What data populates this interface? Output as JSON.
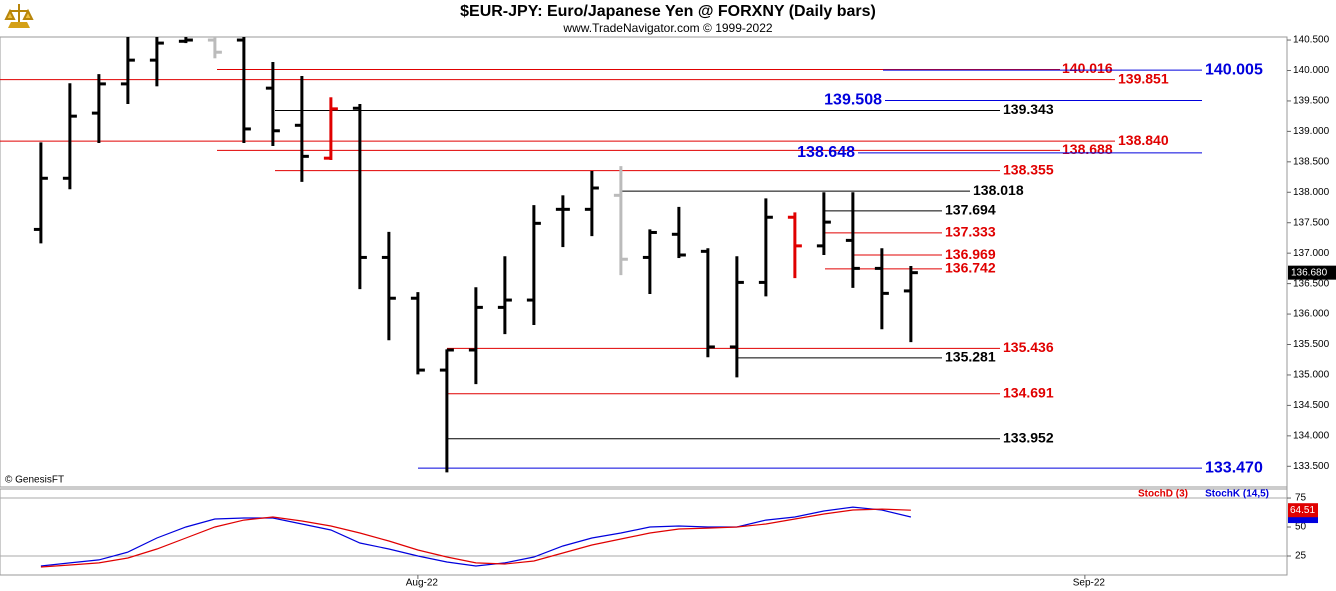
{
  "chart_data": [
    {
      "type": "ohlc",
      "title": "$EUR-JPY:  Euro/Japanese Yen @ FORXNY  (Daily bars)",
      "subtitle": "www.TradeNavigator.com © 1999-2022",
      "source": "© GenesisFT",
      "categories": [
        null,
        null,
        null,
        null,
        null,
        null,
        null,
        null,
        null,
        null,
        null,
        null,
        null,
        null,
        null,
        null,
        null,
        null,
        null,
        null,
        null,
        null,
        null,
        null,
        null,
        null,
        null,
        null,
        null,
        null,
        null
      ],
      "xlim": [
        -1.41,
        42.97
      ],
      "open": [
        137.39,
        138.23,
        139.3,
        139.78,
        140.17,
        140.48,
        140.5,
        140.5,
        139.71,
        139.1,
        138.56,
        139.38,
        136.93,
        136.26,
        135.08,
        135.41,
        136.11,
        136.23,
        137.72,
        137.72,
        137.95,
        136.93,
        137.31,
        137.03,
        135.46,
        136.52,
        137.59,
        137.12,
        137.21,
        136.75,
        136.38
      ],
      "high": [
        138.82,
        139.79,
        139.94,
        140.6,
        140.6,
        140.6,
        140.6,
        140.6,
        140.14,
        139.91,
        139.56,
        139.45,
        137.35,
        136.36,
        135.42,
        136.44,
        136.95,
        137.79,
        137.95,
        138.35,
        138.43,
        137.39,
        137.76,
        137.08,
        136.95,
        137.9,
        137.67,
        138.0,
        138.0,
        137.08,
        136.79
      ],
      "low": [
        137.16,
        138.05,
        138.81,
        139.45,
        139.74,
        140.45,
        140.2,
        138.81,
        138.76,
        138.17,
        138.53,
        136.41,
        135.57,
        135.01,
        133.4,
        134.85,
        135.67,
        135.82,
        137.1,
        137.28,
        136.64,
        136.33,
        136.92,
        135.29,
        134.96,
        136.29,
        136.59,
        136.97,
        136.43,
        135.75,
        135.54
      ],
      "close": [
        138.23,
        139.25,
        139.78,
        140.17,
        140.45,
        140.5,
        140.3,
        139.04,
        139.01,
        138.59,
        139.37,
        136.93,
        136.26,
        135.08,
        135.41,
        136.11,
        136.23,
        137.49,
        137.72,
        138.07,
        136.9,
        137.34,
        136.97,
        135.46,
        136.52,
        137.59,
        137.12,
        137.51,
        136.75,
        136.34,
        136.68
      ],
      "colors": [
        "#000",
        "#000",
        "#000",
        "#000",
        "#000",
        "#000",
        "#bbbbbb",
        "#000",
        "#000",
        "#000",
        "#e00000",
        "#000",
        "#000",
        "#000",
        "#000",
        "#000",
        "#000",
        "#000",
        "#000",
        "#000",
        "#bbbbbb",
        "#000",
        "#000",
        "#000",
        "#000",
        "#000",
        "#e00000",
        "#000",
        "#000",
        "#000",
        "#000"
      ],
      "last_price": {
        "value": 136.68,
        "label": "136.680"
      },
      "ylim": [
        133.16,
        140.55
      ],
      "yticks": [
        {
          "value": 140.5,
          "label": "140.500"
        },
        {
          "value": 140,
          "label": "140.000"
        },
        {
          "value": 139.5,
          "label": "139.500"
        },
        {
          "value": 139,
          "label": "139.000"
        },
        {
          "value": 138.5,
          "label": "138.500"
        },
        {
          "value": 138,
          "label": "138.000"
        },
        {
          "value": 137.5,
          "label": "137.500"
        },
        {
          "value": 137,
          "label": "137.000"
        },
        {
          "value": 136.5,
          "label": "136.500"
        },
        {
          "value": 136,
          "label": "136.000"
        },
        {
          "value": 135.5,
          "label": "135.500"
        },
        {
          "value": 135,
          "label": "135.000"
        },
        {
          "value": 134.5,
          "label": "134.500"
        },
        {
          "value": 134,
          "label": "134.000"
        },
        {
          "value": 133.5,
          "label": "133.500"
        }
      ],
      "levels": [
        {
          "value": 140.016,
          "label": "140.016",
          "color": "#e00000"
        },
        {
          "value": 139.851,
          "label": "139.851",
          "color": "#e00000"
        },
        {
          "value": 140.005,
          "label": "140.005",
          "color": "#0000dd"
        },
        {
          "value": 139.508,
          "label": "139.508",
          "color": "#0000dd"
        },
        {
          "value": 139.343,
          "label": "139.343",
          "color": "#000000"
        },
        {
          "value": 138.84,
          "label": "138.840",
          "color": "#e00000"
        },
        {
          "value": 138.688,
          "label": "138.688",
          "color": "#e00000"
        },
        {
          "value": 138.648,
          "label": "138.648",
          "color": "#0000dd"
        },
        {
          "value": 138.355,
          "label": "138.355",
          "color": "#e00000"
        },
        {
          "value": 138.018,
          "label": "138.018",
          "color": "#000000"
        },
        {
          "value": 137.694,
          "label": "137.694",
          "color": "#000000"
        },
        {
          "value": 137.333,
          "label": "137.333",
          "color": "#e00000"
        },
        {
          "value": 136.969,
          "label": "136.969",
          "color": "#e00000"
        },
        {
          "value": 136.742,
          "label": "136.742",
          "color": "#e00000"
        },
        {
          "value": 135.436,
          "label": "135.436",
          "color": "#e00000"
        },
        {
          "value": 135.281,
          "label": "135.281",
          "color": "#000000"
        },
        {
          "value": 134.691,
          "label": "134.691",
          "color": "#e00000"
        },
        {
          "value": 133.952,
          "label": "133.952",
          "color": "#000000"
        },
        {
          "value": 133.47,
          "label": "133.470",
          "color": "#0000dd"
        }
      ]
    },
    {
      "type": "line",
      "categories": [
        null,
        null,
        null,
        null,
        null,
        null,
        null,
        null,
        null,
        null,
        null,
        null,
        null,
        null,
        null,
        null,
        null,
        null,
        null,
        null,
        null,
        null,
        null,
        null,
        null,
        null,
        null,
        null,
        null,
        null,
        null
      ],
      "xlim": [
        -1.41,
        42.97
      ],
      "xticks": [
        {
          "value": 13,
          "label": "Aug-22"
        },
        {
          "value": 36,
          "label": "Sep-22"
        }
      ],
      "ylim": [
        8.6,
        82.8
      ],
      "yticks": [
        25,
        50,
        75
      ],
      "levels": [
        75,
        25
      ],
      "series": [
        {
          "name": "StochD (3)",
          "color": "#e00000",
          "values": [
            15.5,
            17.2,
            19.0,
            23.3,
            31.0,
            40.5,
            50.0,
            56.0,
            58.6,
            55.2,
            50.9,
            44.8,
            37.9,
            30.2,
            24.1,
            19.0,
            18.1,
            20.7,
            27.6,
            34.5,
            39.7,
            44.8,
            48.3,
            49.1,
            50.0,
            52.6,
            56.9,
            61.2,
            64.7,
            65.5,
            64.51
          ]
        },
        {
          "name": "StochK (14,5)",
          "color": "#0000dd",
          "values": [
            16.4,
            19.0,
            21.6,
            28.4,
            40.5,
            50.0,
            56.9,
            57.8,
            57.8,
            52.6,
            47.4,
            36.2,
            31.0,
            25.0,
            19.8,
            16.4,
            19.0,
            24.1,
            33.6,
            40.5,
            44.8,
            50.0,
            50.9,
            50.0,
            50.0,
            56.0,
            58.6,
            63.8,
            67.2,
            64.7,
            58.6
          ]
        }
      ]
    }
  ]
}
